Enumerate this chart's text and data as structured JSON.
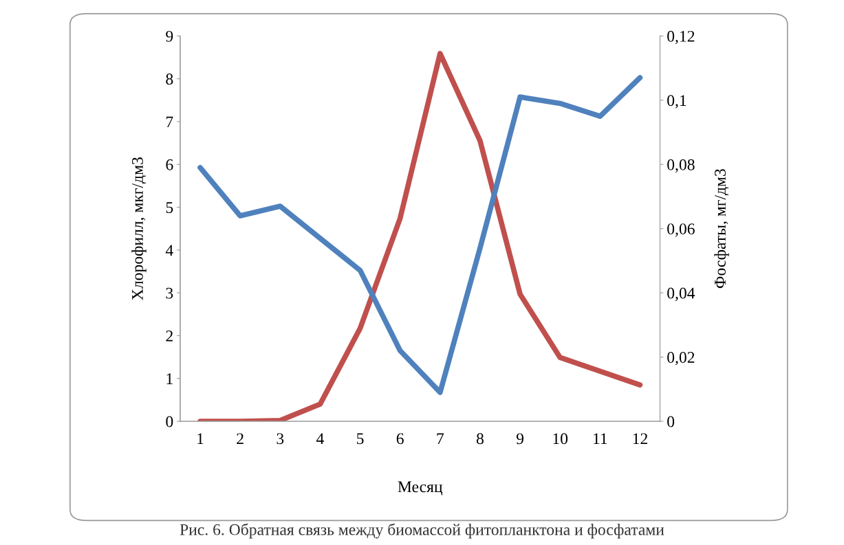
{
  "chart_data": {
    "type": "line",
    "xlabel": "Месяц",
    "ylabel": "Хлорофилл, мкг/дм3",
    "y2label": "Фосфаты, мг/дм3",
    "categories": [
      "1",
      "2",
      "3",
      "4",
      "5",
      "6",
      "7",
      "8",
      "9",
      "10",
      "11",
      "12"
    ],
    "series": [
      {
        "color": "#c0504d",
        "values": [
          0,
          0,
          0.02,
          0.4,
          2.17,
          4.74,
          8.59,
          6.55,
          2.97,
          1.49,
          1.17,
          0.85
        ]
      },
      {
        "color": "#4f81bd",
        "axis": "y2",
        "values": [
          0.079,
          0.064,
          0.067,
          0.057,
          0.047,
          0.022,
          0.009,
          0.054,
          0.101,
          0.099,
          0.095,
          0.107
        ]
      }
    ],
    "ylim": [
      0,
      9
    ],
    "yticks": [
      0,
      1,
      2,
      3,
      4,
      5,
      6,
      7,
      8,
      9
    ],
    "y2lim": [
      0,
      0.12
    ],
    "y2ticks": [
      0,
      {
        "value": 0.02,
        "label": "0,02"
      },
      {
        "value": 0.04,
        "label": "0,04"
      },
      {
        "value": 0.06,
        "label": "0,06"
      },
      {
        "value": 0.08,
        "label": "0,08"
      },
      {
        "value": 0.1,
        "label": "0,1"
      },
      {
        "value": 0.12,
        "label": "0,12"
      }
    ],
    "grid": false,
    "legend": false,
    "annotations": [
      "Рис. 6. Обратная связь между биомассой фитопланктона и фосфатами"
    ]
  }
}
